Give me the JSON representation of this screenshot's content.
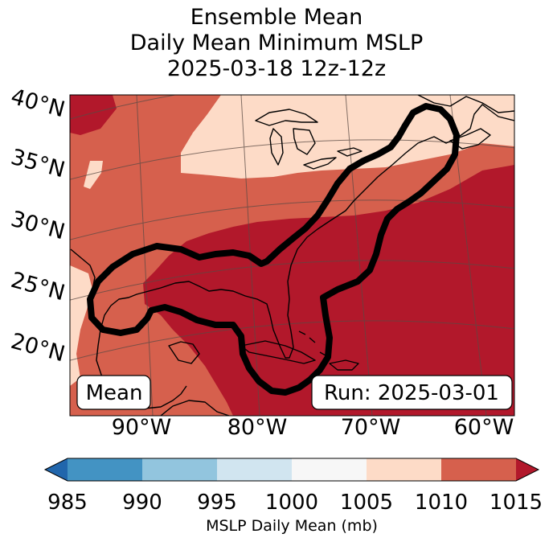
{
  "title": {
    "line1": "Ensemble Mean",
    "line2": "Daily Mean Minimum MSLP",
    "line3": "2025-03-18 12z-12z"
  },
  "map": {
    "lat_labels": [
      "40°N",
      "35°N",
      "30°N",
      "25°N",
      "20°N"
    ],
    "lon_labels": [
      "90°W",
      "80°W",
      "70°W",
      "60°W"
    ],
    "mean_badge": "Mean",
    "run_badge": "Run: 2025-03-01",
    "contour_color": "#000000",
    "coastline_color": "#000000",
    "gridline_color": "#5a4a44"
  },
  "colorbar": {
    "title": "MSLP Daily Mean (mb)",
    "ticks": [
      "985",
      "990",
      "995",
      "1000",
      "1005",
      "1010",
      "1015"
    ],
    "colors": {
      "under": "#2166ac",
      "c985_990": "#4393c3",
      "c990_995": "#92c5de",
      "c995_1000": "#d1e5f0",
      "c1000_1005": "#f7f7f7",
      "c1005_1010": "#fddbc7",
      "c1010_1015": "#d6604d",
      "over": "#b2182b"
    }
  }
}
